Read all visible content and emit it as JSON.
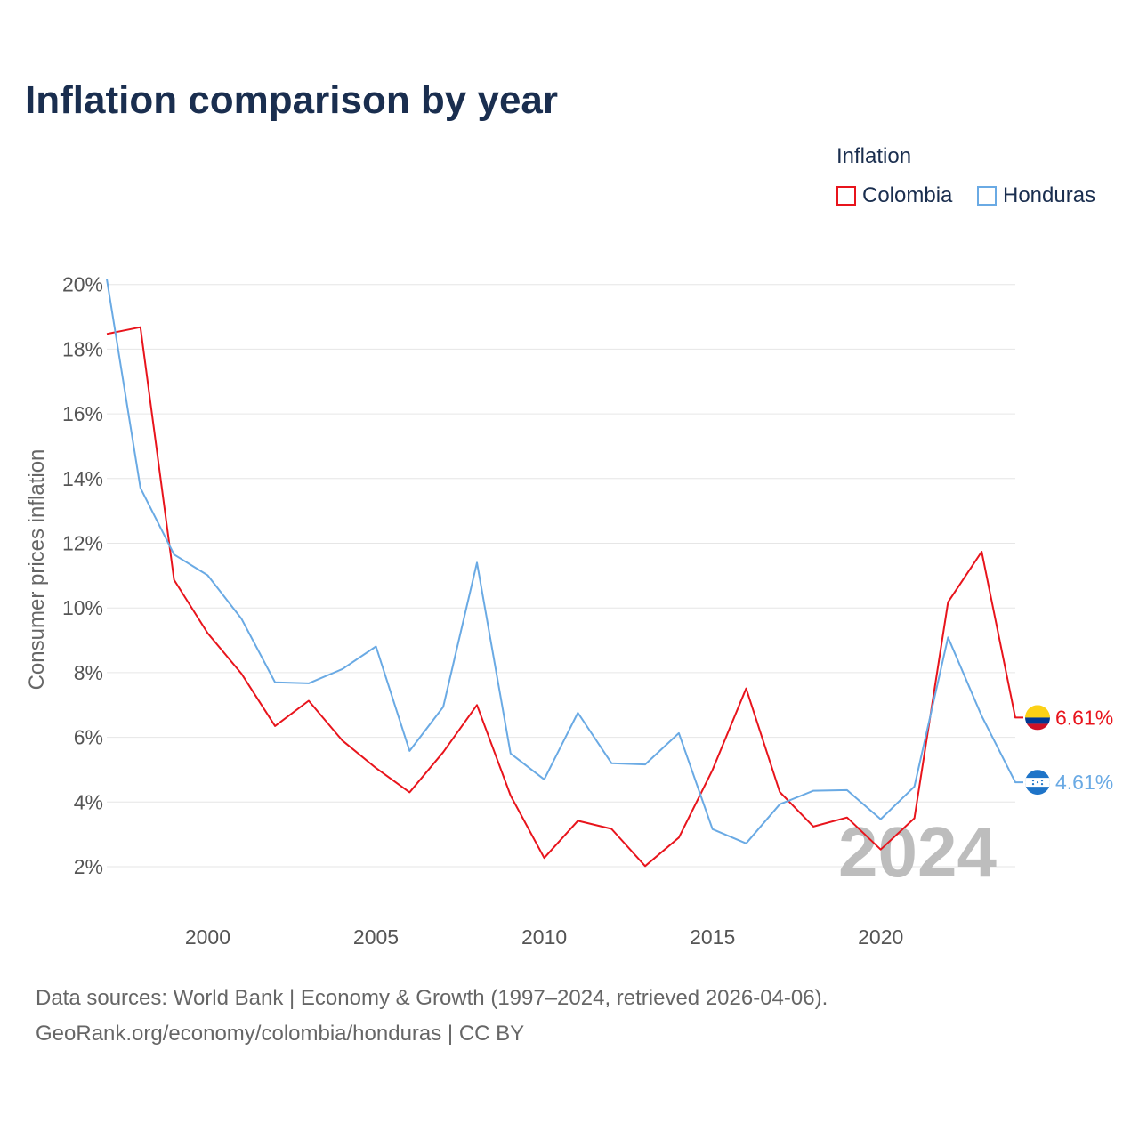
{
  "title": "Inflation comparison by year",
  "legend": {
    "title": "Inflation",
    "items": [
      {
        "label": "Colombia",
        "color": "#e8141c"
      },
      {
        "label": "Honduras",
        "color": "#6aaae4"
      }
    ]
  },
  "footer": {
    "line1": "Data sources: World Bank | Economy & Growth (1997–2024, retrieved 2026-04-06).",
    "line2": "GeoRank.org/economy/colombia/honduras | CC BY"
  },
  "chart_data": {
    "type": "line",
    "title": "Inflation comparison by year",
    "xlabel": "",
    "ylabel": "Consumer prices inflation",
    "x": [
      1997,
      1998,
      1999,
      2000,
      2001,
      2002,
      2003,
      2004,
      2005,
      2006,
      2007,
      2008,
      2009,
      2010,
      2011,
      2012,
      2013,
      2014,
      2015,
      2016,
      2017,
      2018,
      2019,
      2020,
      2021,
      2022,
      2023,
      2024
    ],
    "xlim": [
      1997,
      2024
    ],
    "ylim": [
      1,
      20
    ],
    "xticks": [
      2000,
      2005,
      2010,
      2015,
      2020
    ],
    "yticks": [
      2,
      4,
      6,
      8,
      10,
      12,
      14,
      16,
      18,
      20
    ],
    "ytick_labels": [
      "2%",
      "4%",
      "6%",
      "8%",
      "10%",
      "12%",
      "14%",
      "16%",
      "18%",
      "20%"
    ],
    "grid": true,
    "watermark": "2024",
    "series": [
      {
        "name": "Colombia",
        "color": "#e8141c",
        "values": [
          18.47,
          18.68,
          10.87,
          9.22,
          7.97,
          6.35,
          7.13,
          5.9,
          5.05,
          4.3,
          5.54,
          7.0,
          4.2,
          2.27,
          3.42,
          3.17,
          2.02,
          2.9,
          4.99,
          7.51,
          4.31,
          3.24,
          3.52,
          2.53,
          3.5,
          10.18,
          11.74,
          6.61
        ],
        "end_label": "6.61%"
      },
      {
        "name": "Honduras",
        "color": "#6aaae4",
        "values": [
          20.17,
          13.71,
          11.65,
          11.01,
          9.67,
          7.7,
          7.67,
          8.11,
          8.81,
          5.58,
          6.94,
          11.4,
          5.5,
          4.7,
          6.76,
          5.2,
          5.16,
          6.13,
          3.16,
          2.72,
          3.93,
          4.35,
          4.37,
          3.47,
          4.48,
          9.09,
          6.66,
          4.61
        ],
        "end_label": "4.61%"
      }
    ]
  }
}
